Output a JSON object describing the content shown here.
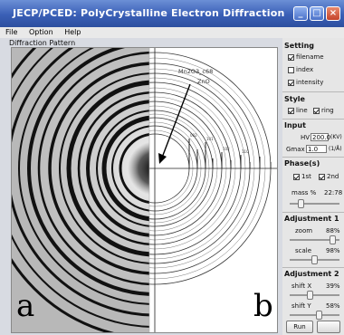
{
  "window": {
    "title": "JECP/PCED: PolyCrystalline Electron Diffraction",
    "buttons": [
      "minimize-button",
      "maximize-button",
      "close-button"
    ]
  },
  "menu": [
    "File",
    "Option",
    "Help"
  ],
  "diffraction_panel": {
    "label": "Diffraction Pattern",
    "panel_a": "a",
    "panel_b": "b",
    "annotations": [
      "Mn2O3_c68",
      "ZnO"
    ]
  },
  "sidebar": {
    "setting": {
      "heading": "Setting",
      "items": [
        {
          "label": "filename",
          "checked": true
        },
        {
          "label": "index",
          "checked": false
        },
        {
          "label": "intensity",
          "checked": true
        }
      ]
    },
    "style": {
      "heading": "Style",
      "items": [
        {
          "label": "line",
          "checked": true
        },
        {
          "label": "ring",
          "checked": true
        }
      ]
    },
    "input": {
      "heading": "Input",
      "hv_label": "HV",
      "hv_value": "200.0",
      "hv_unit": "(KV)",
      "gmax_label": "Gmax",
      "gmax_value": "1.0",
      "gmax_unit": "(1/Å)"
    },
    "phases": {
      "heading": "Phase(s)",
      "items": [
        {
          "label": "1st",
          "checked": true
        },
        {
          "label": "2nd",
          "checked": true
        }
      ],
      "mass_label": "mass %",
      "mass_value": "22:78"
    },
    "adjustment1": {
      "heading": "Adjustment 1",
      "zoom_label": "zoom",
      "zoom_value": "88%",
      "scale_label": "scale",
      "scale_value": "98%"
    },
    "adjustment2": {
      "heading": "Adjustment 2",
      "shiftx_label": "shift X",
      "shiftx_value": "39%",
      "shifty_label": "shift Y",
      "shifty_value": "58%"
    },
    "run_label": "Run"
  },
  "colors": {
    "title_bar": "#3a5fb6",
    "panel_bg": "#e6e6e6"
  }
}
